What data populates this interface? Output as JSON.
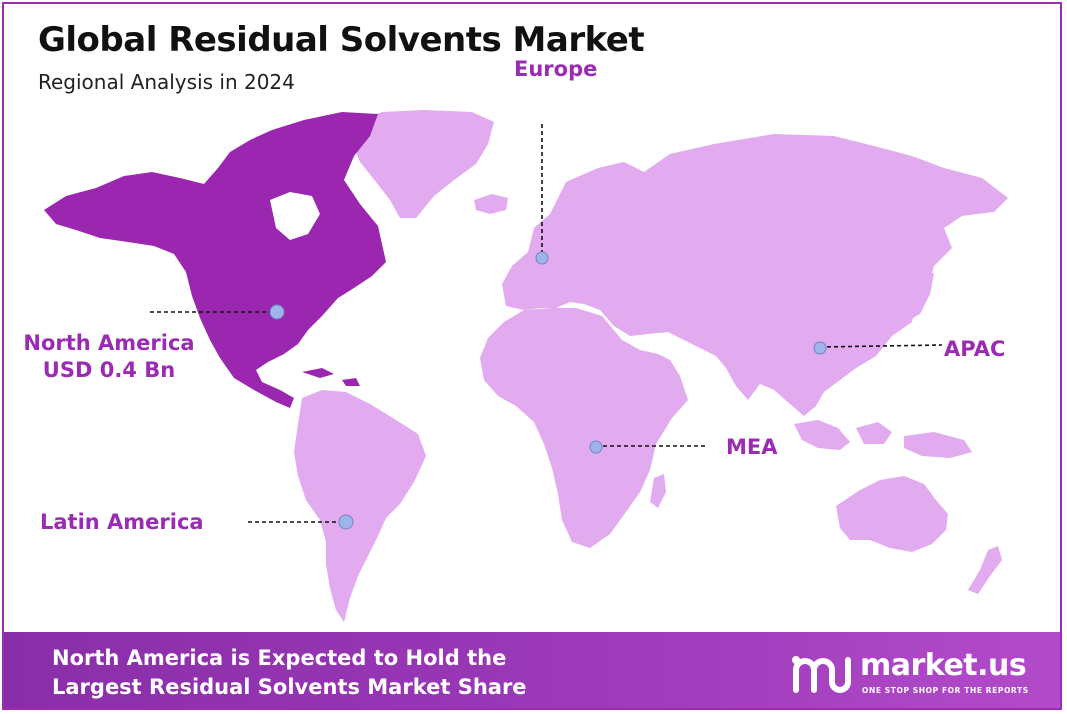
{
  "header": {
    "title": "Global Residual Solvents Market",
    "subtitle": "Regional Analysis in 2024"
  },
  "regions": [
    {
      "id": "north-america",
      "name": "North America",
      "value": "USD 0.4 Bn",
      "highlighted": true
    },
    {
      "id": "europe",
      "name": "Europe",
      "value": "",
      "highlighted": false
    },
    {
      "id": "apac",
      "name": "APAC",
      "value": "",
      "highlighted": false
    },
    {
      "id": "mea",
      "name": "MEA",
      "value": "",
      "highlighted": false
    },
    {
      "id": "latin-america",
      "name": "Latin America",
      "value": "",
      "highlighted": false
    }
  ],
  "footer": {
    "line1": "North America is Expected to Hold the",
    "line2": "Largest Residual Solvents Market Share"
  },
  "brand": {
    "name": "market.us",
    "tagline": "ONE STOP SHOP FOR THE REPORTS"
  },
  "colors": {
    "highlight": "#9b26b0",
    "land": "#e2aaef",
    "accent_text": "#9b2bb5",
    "marker": "#9fb4ea",
    "footer": "#9a38b8"
  }
}
